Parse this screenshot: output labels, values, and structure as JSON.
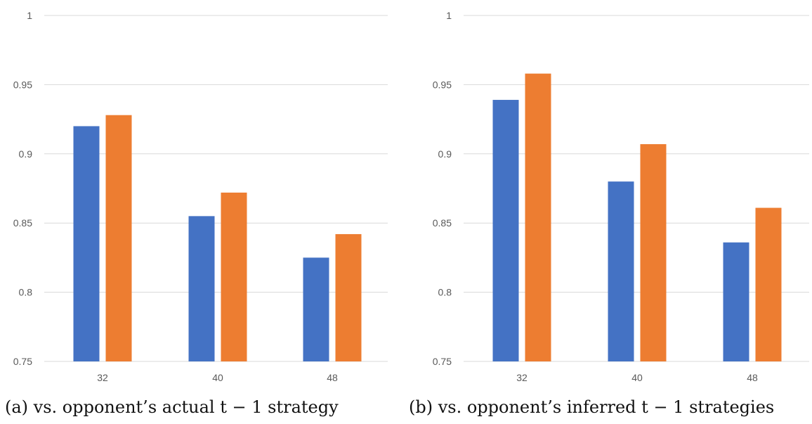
{
  "chart_data": [
    {
      "type": "bar",
      "caption": "(a) vs. opponent’s actual t − 1 strategy",
      "categories": [
        "32",
        "40",
        "48"
      ],
      "series": [
        {
          "values": [
            0.92,
            0.855,
            0.825
          ]
        },
        {
          "values": [
            0.928,
            0.872,
            0.842
          ]
        }
      ],
      "ylim": [
        0.75,
        1
      ],
      "yticks": [
        0.75,
        0.8,
        0.85,
        0.9,
        0.95,
        1
      ],
      "ytick_labels": [
        "0.75",
        "0.8",
        "0.85",
        "0.9",
        "0.95",
        "1"
      ],
      "grid": true
    },
    {
      "type": "bar",
      "caption": "(b) vs. opponent’s inferred t − 1 strategies",
      "categories": [
        "32",
        "40",
        "48"
      ],
      "series": [
        {
          "values": [
            0.939,
            0.88,
            0.836
          ]
        },
        {
          "values": [
            0.958,
            0.907,
            0.861
          ]
        }
      ],
      "ylim": [
        0.75,
        1
      ],
      "yticks": [
        0.75,
        0.8,
        0.85,
        0.9,
        0.95,
        1
      ],
      "ytick_labels": [
        "0.75",
        "0.8",
        "0.85",
        "0.9",
        "0.95",
        "1"
      ],
      "grid": true
    }
  ],
  "colors": {
    "series_1": "#4472C4",
    "series_2": "#ED7D31"
  }
}
